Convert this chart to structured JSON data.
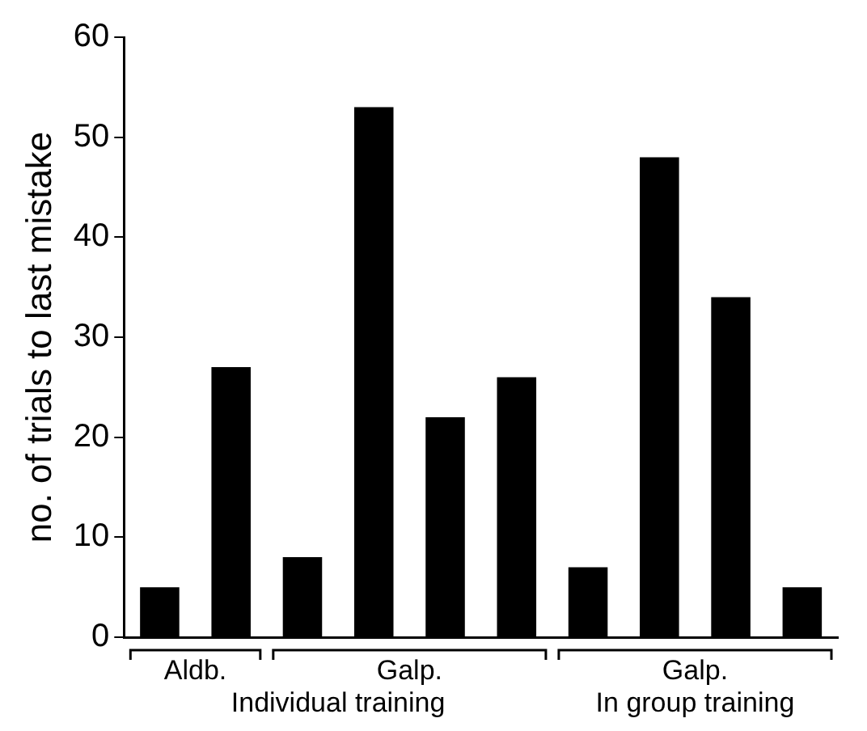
{
  "chart_data": {
    "type": "bar",
    "ylabel": "no. of trials to last mistake",
    "categories": [
      null,
      null,
      null,
      null,
      null,
      null,
      null,
      null,
      null,
      null
    ],
    "values": [
      5,
      27,
      8,
      53,
      22,
      26,
      7,
      48,
      34,
      5
    ],
    "color": "#000000",
    "ylim": [
      0,
      60
    ],
    "yticks": [
      0,
      10,
      20,
      30,
      40,
      50,
      60
    ],
    "grid": false,
    "legend": false,
    "annotations": [
      "Aldb.",
      "Galp.",
      "Galp.",
      "Individual training",
      "In group training"
    ]
  }
}
